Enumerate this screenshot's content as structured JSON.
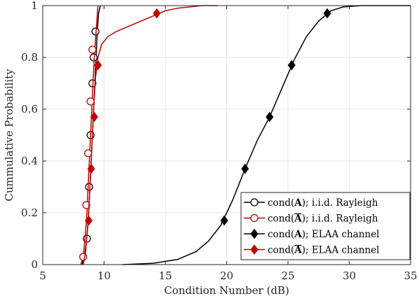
{
  "chart_data": {
    "type": "line",
    "title": "",
    "xlabel": "Condition Number (dB)",
    "ylabel": "Cummulative Probability",
    "xlim": [
      5,
      35
    ],
    "ylim": [
      0,
      1
    ],
    "xticks": [
      5,
      10,
      15,
      20,
      25,
      30,
      35
    ],
    "yticks": [
      0,
      0.2,
      0.4,
      0.6,
      0.8,
      1
    ],
    "xtick_labels": [
      "5",
      "10",
      "15",
      "20",
      "25",
      "30",
      "35"
    ],
    "ytick_labels": [
      "0",
      "0.2",
      "0.4",
      "0.6",
      "0.8",
      "1"
    ],
    "grid": true,
    "legend_position": "bottom-right",
    "series": [
      {
        "name": "cond(A); i.i.d. Rayleigh",
        "legend_prefix": "cond(",
        "legend_symbol": "A",
        "legend_bar": false,
        "legend_suffix": "); i.i.d. Rayleigh",
        "color": "#000000",
        "marker": "circle-open",
        "x": [
          8.2,
          8.4,
          8.6,
          8.75,
          8.85,
          8.95,
          9.05,
          9.15,
          9.25,
          9.35,
          9.45,
          9.55,
          9.7
        ],
        "y": [
          0.0,
          0.03,
          0.1,
          0.2,
          0.3,
          0.4,
          0.5,
          0.6,
          0.7,
          0.8,
          0.9,
          0.97,
          1.0
        ],
        "markers_x": [
          8.6,
          8.78,
          8.9,
          9.05,
          9.15,
          9.3
        ],
        "markers_y": [
          0.1,
          0.3,
          0.5,
          0.7,
          0.8,
          0.9
        ]
      },
      {
        "name": "cond(Ā); i.i.d. Rayleigh",
        "legend_prefix": "cond(",
        "legend_symbol": "A",
        "legend_bar": true,
        "legend_suffix": "); i.i.d. Rayleigh",
        "color": "#c00000",
        "marker": "circle-open",
        "x": [
          8.1,
          8.3,
          8.45,
          8.6,
          8.7,
          8.8,
          8.9,
          9.0,
          9.1,
          9.2,
          9.35,
          9.5
        ],
        "y": [
          0.0,
          0.03,
          0.1,
          0.2,
          0.3,
          0.4,
          0.5,
          0.6,
          0.7,
          0.8,
          0.9,
          1.0
        ],
        "markers_x": [
          8.3,
          8.55,
          8.7,
          8.9,
          9.05
        ],
        "markers_y": [
          0.03,
          0.23,
          0.43,
          0.63,
          0.83
        ]
      },
      {
        "name": "cond(A); ELAA channel",
        "legend_prefix": "cond(",
        "legend_symbol": "A",
        "legend_bar": false,
        "legend_suffix": "); ELAA channel",
        "color": "#000000",
        "marker": "diamond-filled",
        "x": [
          11.5,
          14,
          16,
          17.5,
          18.5,
          19.5,
          20.5,
          21.5,
          22.5,
          23.5,
          24.5,
          25.5,
          26.5,
          27.5,
          28.5,
          29.5,
          31,
          33,
          35
        ],
        "y": [
          0.0,
          0.005,
          0.02,
          0.05,
          0.09,
          0.15,
          0.25,
          0.37,
          0.48,
          0.57,
          0.68,
          0.79,
          0.88,
          0.94,
          0.98,
          0.995,
          1.0,
          1.0,
          1.0
        ],
        "markers_x": [
          19.8,
          21.5,
          23.5,
          25.3,
          28.2
        ],
        "markers_y": [
          0.17,
          0.37,
          0.57,
          0.77,
          0.97
        ]
      },
      {
        "name": "cond(Ā); ELAA channel",
        "legend_prefix": "cond(",
        "legend_symbol": "A",
        "legend_bar": true,
        "legend_suffix": "); ELAA channel",
        "color": "#c00000",
        "marker": "diamond-filled",
        "x": [
          8.3,
          8.5,
          8.7,
          8.85,
          9.0,
          9.15,
          9.3,
          9.5,
          9.8,
          10.3,
          11,
          12,
          13,
          14,
          15,
          16,
          17,
          18,
          19.3
        ],
        "y": [
          0.0,
          0.05,
          0.17,
          0.3,
          0.45,
          0.6,
          0.72,
          0.8,
          0.85,
          0.88,
          0.9,
          0.92,
          0.94,
          0.96,
          0.98,
          0.99,
          0.995,
          1.0,
          1.0
        ],
        "markers_x": [
          8.75,
          8.95,
          9.2,
          9.5,
          14.3
        ],
        "markers_y": [
          0.17,
          0.37,
          0.57,
          0.77,
          0.97
        ]
      }
    ]
  }
}
